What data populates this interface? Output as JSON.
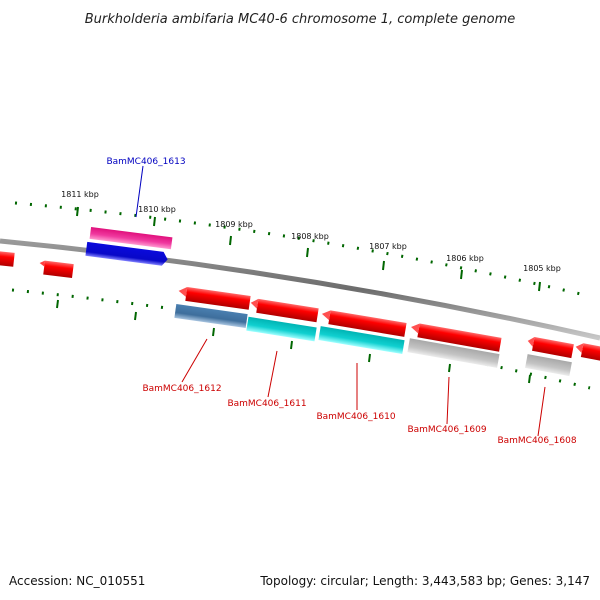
{
  "title": "Burkholderia ambifaria MC40-6 chromosome 1, complete genome",
  "footer": {
    "accession": "Accession: NC_010551",
    "topology": "Topology: circular; Length: 3,443,583 bp; Genes: 3,147"
  },
  "kbp_labels": [
    "1811 kbp",
    "1810 kbp",
    "1809 kbp",
    "1808 kbp",
    "1807 kbp",
    "1806 kbp",
    "1805 kbp"
  ],
  "colors": {
    "backbone": "#808080",
    "tick": "#006600",
    "red_gene": "#e60000",
    "pink_gene": "#e8158c",
    "blue_gene": "#0a0adc",
    "steelblue_gene": "#4a7fb0",
    "cyan_gene": "#00c8c8",
    "gray_gene": "#b4b4b4",
    "label_blue": "#0000c0",
    "label_red": "#cc0000"
  },
  "gene_labels": {
    "g1613": "BamMC406_1613",
    "g1612": "BamMC406_1612",
    "g1611": "BamMC406_1611",
    "g1610": "BamMC406_1610",
    "g1609": "BamMC406_1609",
    "g1608": "BamMC406_1608"
  }
}
